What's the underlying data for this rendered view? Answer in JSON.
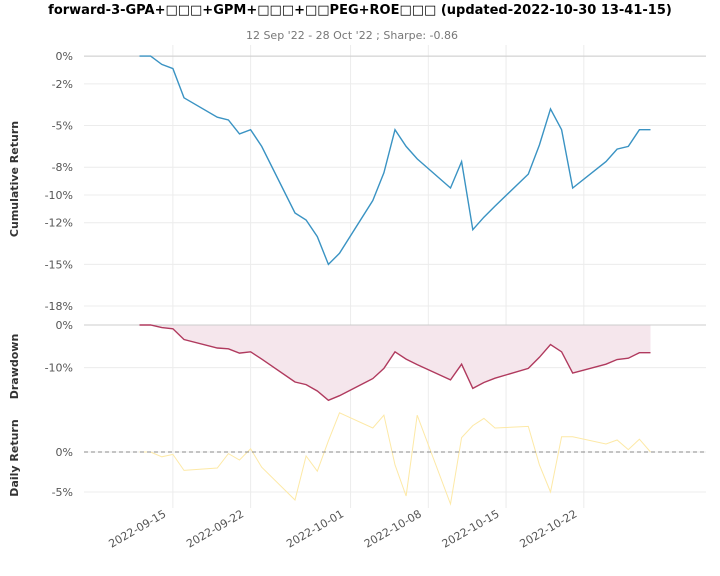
{
  "title": "forward-3-GPA+□□□+GPM+□□□+□□PEG+ROE□□□ (updated-2022-10-30 13-41-15)",
  "subtitle": "12 Sep '22 - 28 Oct '22 ;  Sharpe: -0.86",
  "colors": {
    "cumulative": "#3a93c3",
    "drawdown": "#b03a5e",
    "drawdown_fill": "#f5e6ec",
    "daily": "#fde9a6",
    "grid": "#ececec",
    "zero_line": "#888888"
  },
  "chart_data": [
    {
      "type": "line",
      "ylabel": "Cumulative Return",
      "dates": [
        "2022-09-12",
        "2022-09-13",
        "2022-09-14",
        "2022-09-15",
        "2022-09-16",
        "2022-09-19",
        "2022-09-20",
        "2022-09-21",
        "2022-09-22",
        "2022-09-23",
        "2022-09-26",
        "2022-09-27",
        "2022-09-28",
        "2022-09-29",
        "2022-09-30",
        "2022-10-03",
        "2022-10-04",
        "2022-10-05",
        "2022-10-06",
        "2022-10-07",
        "2022-10-10",
        "2022-10-11",
        "2022-10-12",
        "2022-10-13",
        "2022-10-14",
        "2022-10-17",
        "2022-10-18",
        "2022-10-19",
        "2022-10-20",
        "2022-10-21",
        "2022-10-24",
        "2022-10-25",
        "2022-10-26",
        "2022-10-27",
        "2022-10-28"
      ],
      "values": [
        0.0,
        0.0,
        -0.6,
        -0.9,
        -3.0,
        -4.4,
        -4.6,
        -5.6,
        -5.3,
        -6.5,
        -11.3,
        -11.8,
        -13.0,
        -15.0,
        -14.2,
        -10.4,
        -8.4,
        -5.3,
        -6.5,
        -7.4,
        -9.5,
        -7.6,
        -12.5,
        -11.6,
        -10.8,
        -8.5,
        -6.4,
        -3.8,
        -5.3,
        -9.5,
        -7.6,
        -6.7,
        -6.5,
        -5.3,
        -5.3
      ],
      "yticks": [
        "0%",
        "-2%",
        "-5%",
        "-8%",
        "-10%",
        "-12%",
        "-15%",
        "-18%"
      ],
      "ylim": [
        -18.5,
        0.8
      ]
    },
    {
      "type": "area",
      "ylabel": "Drawdown",
      "dates": [
        "2022-09-12",
        "2022-09-13",
        "2022-09-14",
        "2022-09-15",
        "2022-09-16",
        "2022-09-19",
        "2022-09-20",
        "2022-09-21",
        "2022-09-22",
        "2022-09-23",
        "2022-09-26",
        "2022-09-27",
        "2022-09-28",
        "2022-09-29",
        "2022-09-30",
        "2022-10-03",
        "2022-10-04",
        "2022-10-05",
        "2022-10-06",
        "2022-10-07",
        "2022-10-10",
        "2022-10-11",
        "2022-10-12",
        "2022-10-13",
        "2022-10-14",
        "2022-10-17",
        "2022-10-18",
        "2022-10-19",
        "2022-10-20",
        "2022-10-21",
        "2022-10-24",
        "2022-10-25",
        "2022-10-26",
        "2022-10-27",
        "2022-10-28"
      ],
      "values": [
        0.0,
        0.0,
        -0.6,
        -0.9,
        -3.4,
        -5.4,
        -5.6,
        -6.6,
        -6.3,
        -8.0,
        -13.4,
        -14.0,
        -15.5,
        -17.7,
        -16.6,
        -12.6,
        -10.2,
        -6.3,
        -8.0,
        -9.3,
        -12.9,
        -9.2,
        -14.9,
        -13.5,
        -12.5,
        -10.2,
        -7.6,
        -4.6,
        -6.3,
        -11.3,
        -9.2,
        -8.1,
        -7.8,
        -6.5,
        -6.5
      ],
      "yticks": [
        "0%",
        "-10%"
      ],
      "ylim": [
        -19.5,
        0
      ]
    },
    {
      "type": "line",
      "ylabel": "Daily Return",
      "dates": [
        "2022-09-12",
        "2022-09-13",
        "2022-09-14",
        "2022-09-15",
        "2022-09-16",
        "2022-09-19",
        "2022-09-20",
        "2022-09-21",
        "2022-09-22",
        "2022-09-23",
        "2022-09-26",
        "2022-09-27",
        "2022-09-28",
        "2022-09-29",
        "2022-09-30",
        "2022-10-03",
        "2022-10-04",
        "2022-10-05",
        "2022-10-06",
        "2022-10-07",
        "2022-10-10",
        "2022-10-11",
        "2022-10-12",
        "2022-10-13",
        "2022-10-14",
        "2022-10-17",
        "2022-10-18",
        "2022-10-19",
        "2022-10-20",
        "2022-10-21",
        "2022-10-24",
        "2022-10-25",
        "2022-10-26",
        "2022-10-27",
        "2022-10-28"
      ],
      "values": [
        0.0,
        0.0,
        -0.6,
        -0.3,
        -2.3,
        -2.0,
        -0.2,
        -1.0,
        0.4,
        -1.9,
        -6.0,
        -0.5,
        -2.4,
        1.4,
        4.9,
        3.0,
        4.6,
        -1.6,
        -5.5,
        4.6,
        -6.5,
        1.8,
        3.3,
        4.2,
        3.0,
        3.2,
        -1.6,
        -5.0,
        1.9,
        1.9,
        1.0,
        1.5,
        0.3,
        1.6,
        0.0
      ],
      "yticks": [
        "0%",
        "-5%"
      ],
      "ylim": [
        -7,
        5.5
      ]
    }
  ],
  "x_axis": {
    "ticks": [
      "2022-09-15",
      "2022-09-22",
      "2022-10-01",
      "2022-10-08",
      "2022-10-15",
      "2022-10-22"
    ],
    "range": [
      "2022-09-07",
      "2022-11-02"
    ]
  }
}
